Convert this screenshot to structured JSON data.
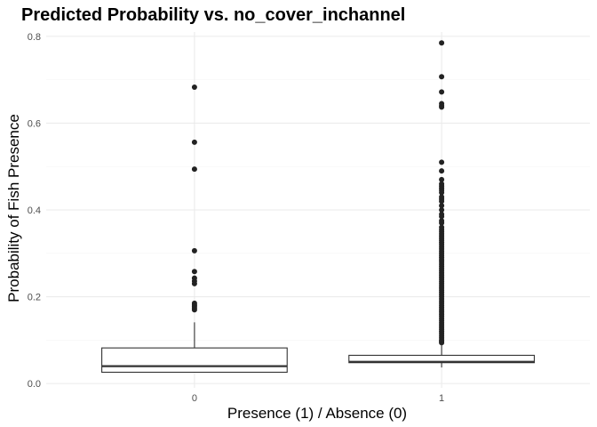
{
  "chart_data": {
    "type": "boxplot",
    "title": "Predicted Probability vs. no_cover_inchannel",
    "xlabel": "Presence (1) / Absence (0)",
    "ylabel": "Probability of Fish Presence",
    "categories": [
      "0",
      "1"
    ],
    "ylim": [
      -0.01,
      0.81
    ],
    "yticks": [
      0.0,
      0.2,
      0.4,
      0.6,
      0.8
    ],
    "ytick_labels": [
      "0.0",
      "0.2",
      "0.4",
      "0.6",
      "0.8"
    ],
    "grid": true,
    "colors": {
      "box_line": "#333333",
      "median": "#333333",
      "outlier": "#222222",
      "grid_major": "#ebebeb",
      "grid_minor": "#f5f5f5"
    },
    "boxes": [
      {
        "category": "0",
        "whisker_low": 0.026,
        "q1": 0.026,
        "median": 0.04,
        "q3": 0.082,
        "whisker_high": 0.141,
        "outliers": [
          0.683,
          0.556,
          0.494,
          0.306,
          0.258,
          0.243,
          0.236,
          0.23,
          0.185,
          0.181,
          0.178,
          0.174,
          0.17
        ]
      },
      {
        "category": "1",
        "whisker_low": 0.037,
        "q1": 0.048,
        "median": 0.05,
        "q3": 0.065,
        "whisker_high": 0.09,
        "outliers": [
          0.785,
          0.707,
          0.672,
          0.645,
          0.64,
          0.637,
          0.51,
          0.49,
          0.47,
          0.46,
          0.455,
          0.45,
          0.445,
          0.44,
          0.43,
          0.425,
          0.42,
          0.41,
          0.4,
          0.39,
          0.385,
          0.375,
          0.37,
          0.36,
          0.355,
          0.35,
          0.345,
          0.34,
          0.335,
          0.33,
          0.325,
          0.32,
          0.315,
          0.31,
          0.305,
          0.3,
          0.295,
          0.29,
          0.285,
          0.28,
          0.275,
          0.27,
          0.265,
          0.26,
          0.255,
          0.25,
          0.245,
          0.24,
          0.235,
          0.23,
          0.225,
          0.22,
          0.215,
          0.21,
          0.205,
          0.2,
          0.195,
          0.19,
          0.185,
          0.18,
          0.175,
          0.17,
          0.165,
          0.16,
          0.155,
          0.15,
          0.145,
          0.14,
          0.135,
          0.13,
          0.125,
          0.12,
          0.115,
          0.11,
          0.105,
          0.1,
          0.097,
          0.094
        ]
      }
    ]
  }
}
